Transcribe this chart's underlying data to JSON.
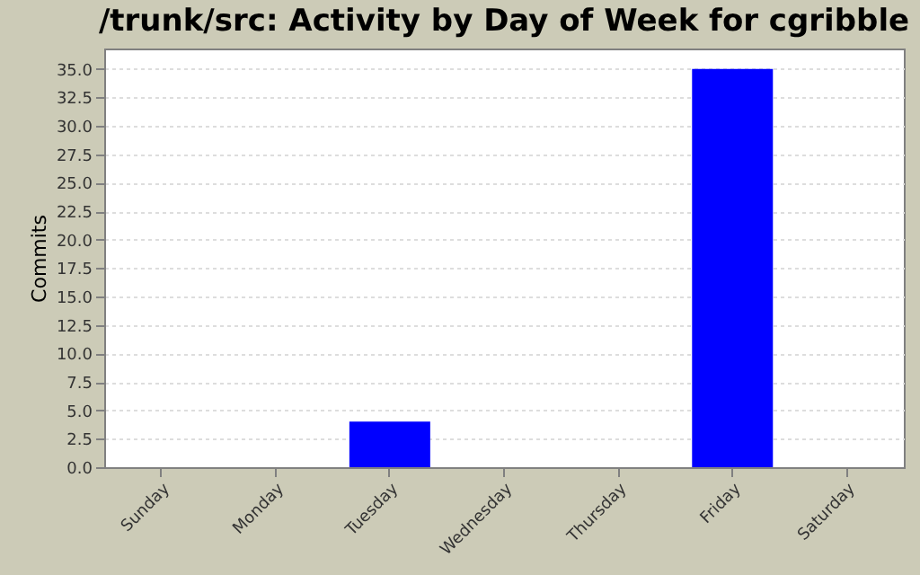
{
  "chart_data": {
    "type": "bar",
    "title": "/trunk/src: Activity by Day of Week for cgribble",
    "ylabel": "Commits",
    "categories": [
      "Sunday",
      "Monday",
      "Tuesday",
      "Wednesday",
      "Thursday",
      "Friday",
      "Saturday"
    ],
    "values": [
      0,
      0,
      4,
      0,
      0,
      35,
      0
    ],
    "color": "#0000ff",
    "ylim": [
      0,
      36.8
    ],
    "yticks": [
      {
        "value": 0,
        "label": "0.0"
      },
      {
        "value": 2.5,
        "label": "2.5"
      },
      {
        "value": 5,
        "label": "5.0"
      },
      {
        "value": 7.5,
        "label": "7.5"
      },
      {
        "value": 10,
        "label": "10.0"
      },
      {
        "value": 12.5,
        "label": "12.5"
      },
      {
        "value": 15,
        "label": "15.0"
      },
      {
        "value": 17.5,
        "label": "17.5"
      },
      {
        "value": 20,
        "label": "20.0"
      },
      {
        "value": 22.5,
        "label": "22.5"
      },
      {
        "value": 25,
        "label": "25.0"
      },
      {
        "value": 27.5,
        "label": "27.5"
      },
      {
        "value": 30,
        "label": "30.0"
      },
      {
        "value": 32.5,
        "label": "32.5"
      },
      {
        "value": 35,
        "label": "35.0"
      }
    ],
    "grid": "y"
  }
}
